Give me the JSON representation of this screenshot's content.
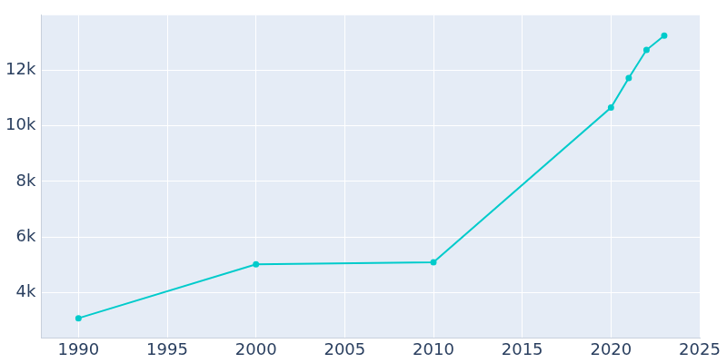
{
  "chart_data": {
    "type": "line",
    "x": [
      1990,
      2000,
      2010,
      2020,
      2021,
      2022,
      2023
    ],
    "values": [
      3080,
      5020,
      5090,
      10660,
      11720,
      12730,
      13250
    ],
    "color": "#00cbcb",
    "marker": "circle",
    "line_style": "solid",
    "xlim": [
      1987.9,
      2025
    ],
    "xticks": [
      1990,
      1995,
      2000,
      2005,
      2010,
      2015,
      2020,
      2025
    ],
    "ylim": [
      2370,
      13980
    ],
    "yticks": [
      {
        "value": 4000,
        "label": "4k"
      },
      {
        "value": 6000,
        "label": "6k"
      },
      {
        "value": 8000,
        "label": "8k"
      },
      {
        "value": 10000,
        "label": "10k"
      },
      {
        "value": 12000,
        "label": "12k"
      }
    ],
    "grid": true
  }
}
